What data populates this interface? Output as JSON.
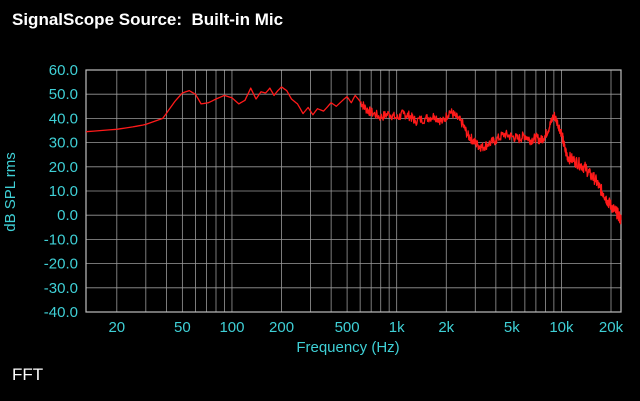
{
  "app": {
    "title": "SignalScope Source:  Built-in Mic",
    "mode": "FFT"
  },
  "colors": {
    "background": "#000000",
    "axis_text": "#3fd0d6",
    "grid": "#9a9a9a",
    "trace": "#ff1a1a",
    "title": "#ffffff"
  },
  "chart_data": {
    "type": "line",
    "title": "",
    "xlabel": "Frequency (Hz)",
    "ylabel": "dB SPL rms",
    "x_scale": "log",
    "xlim": [
      13,
      23000
    ],
    "ylim": [
      -40,
      60
    ],
    "grid": true,
    "legend": "none",
    "x_ticks": [
      {
        "value": 20,
        "label": "20"
      },
      {
        "value": 50,
        "label": "50"
      },
      {
        "value": 100,
        "label": "100"
      },
      {
        "value": 200,
        "label": "200"
      },
      {
        "value": 500,
        "label": "500"
      },
      {
        "value": 1000,
        "label": "1k"
      },
      {
        "value": 2000,
        "label": "2k"
      },
      {
        "value": 5000,
        "label": "5k"
      },
      {
        "value": 10000,
        "label": "10k"
      },
      {
        "value": 20000,
        "label": "20k"
      }
    ],
    "y_ticks": [
      {
        "value": 60,
        "label": "60.0"
      },
      {
        "value": 50,
        "label": "50.0"
      },
      {
        "value": 40,
        "label": "40.0"
      },
      {
        "value": 30,
        "label": "30.0"
      },
      {
        "value": 20,
        "label": "20.0"
      },
      {
        "value": 10,
        "label": "10.0"
      },
      {
        "value": 0,
        "label": "0.0"
      },
      {
        "value": -10,
        "label": "-10.0"
      },
      {
        "value": -20,
        "label": "-20.0"
      },
      {
        "value": -30,
        "label": "-30.0"
      },
      {
        "value": -40,
        "label": "-40.0"
      }
    ],
    "series": [
      {
        "points": [
          [
            13,
            34.5
          ],
          [
            20,
            35.5
          ],
          [
            25,
            36.5
          ],
          [
            30,
            37.5
          ],
          [
            38,
            40
          ],
          [
            45,
            47
          ],
          [
            50,
            50.5
          ],
          [
            55,
            51.5
          ],
          [
            60,
            50
          ],
          [
            65,
            46
          ],
          [
            72,
            46.5
          ],
          [
            80,
            48
          ],
          [
            90,
            49.5
          ],
          [
            100,
            48.5
          ],
          [
            110,
            46
          ],
          [
            120,
            47.5
          ],
          [
            130,
            52.5
          ],
          [
            140,
            48
          ],
          [
            150,
            51
          ],
          [
            160,
            50.5
          ],
          [
            170,
            52.5
          ],
          [
            180,
            49.5
          ],
          [
            190,
            51.5
          ],
          [
            200,
            53
          ],
          [
            215,
            51.5
          ],
          [
            230,
            48
          ],
          [
            250,
            46
          ],
          [
            270,
            42
          ],
          [
            290,
            44.5
          ],
          [
            310,
            41.5
          ],
          [
            330,
            44
          ],
          [
            360,
            43
          ],
          [
            400,
            46.5
          ],
          [
            430,
            45
          ],
          [
            470,
            47.5
          ],
          [
            500,
            49
          ],
          [
            530,
            46.5
          ],
          [
            560,
            49.5
          ],
          [
            600,
            47
          ],
          [
            650,
            44
          ],
          [
            700,
            42.5
          ],
          [
            800,
            40.5
          ],
          [
            900,
            42
          ],
          [
            1000,
            40
          ],
          [
            1100,
            42
          ],
          [
            1200,
            41
          ],
          [
            1300,
            39
          ],
          [
            1500,
            40
          ],
          [
            1700,
            41
          ],
          [
            1900,
            38.5
          ],
          [
            2100,
            43
          ],
          [
            2300,
            40.5
          ],
          [
            2500,
            38
          ],
          [
            2700,
            33
          ],
          [
            2900,
            31
          ],
          [
            3100,
            29
          ],
          [
            3300,
            28
          ],
          [
            3600,
            29.5
          ],
          [
            4000,
            31
          ],
          [
            4500,
            33.5
          ],
          [
            5000,
            32.5
          ],
          [
            5500,
            31.5
          ],
          [
            6000,
            33
          ],
          [
            6500,
            31
          ],
          [
            7000,
            32
          ],
          [
            7500,
            31
          ],
          [
            8000,
            33
          ],
          [
            8500,
            37
          ],
          [
            9000,
            41.5
          ],
          [
            9500,
            38
          ],
          [
            10000,
            34
          ],
          [
            10500,
            27
          ],
          [
            11000,
            24
          ],
          [
            12000,
            22.5
          ],
          [
            13000,
            21
          ],
          [
            14000,
            19.5
          ],
          [
            15000,
            16.5
          ],
          [
            16000,
            15
          ],
          [
            17000,
            11.5
          ],
          [
            18000,
            9
          ],
          [
            19000,
            6
          ],
          [
            20000,
            4
          ],
          [
            21000,
            2
          ],
          [
            22000,
            0.5
          ],
          [
            23000,
            -2
          ]
        ]
      }
    ]
  }
}
